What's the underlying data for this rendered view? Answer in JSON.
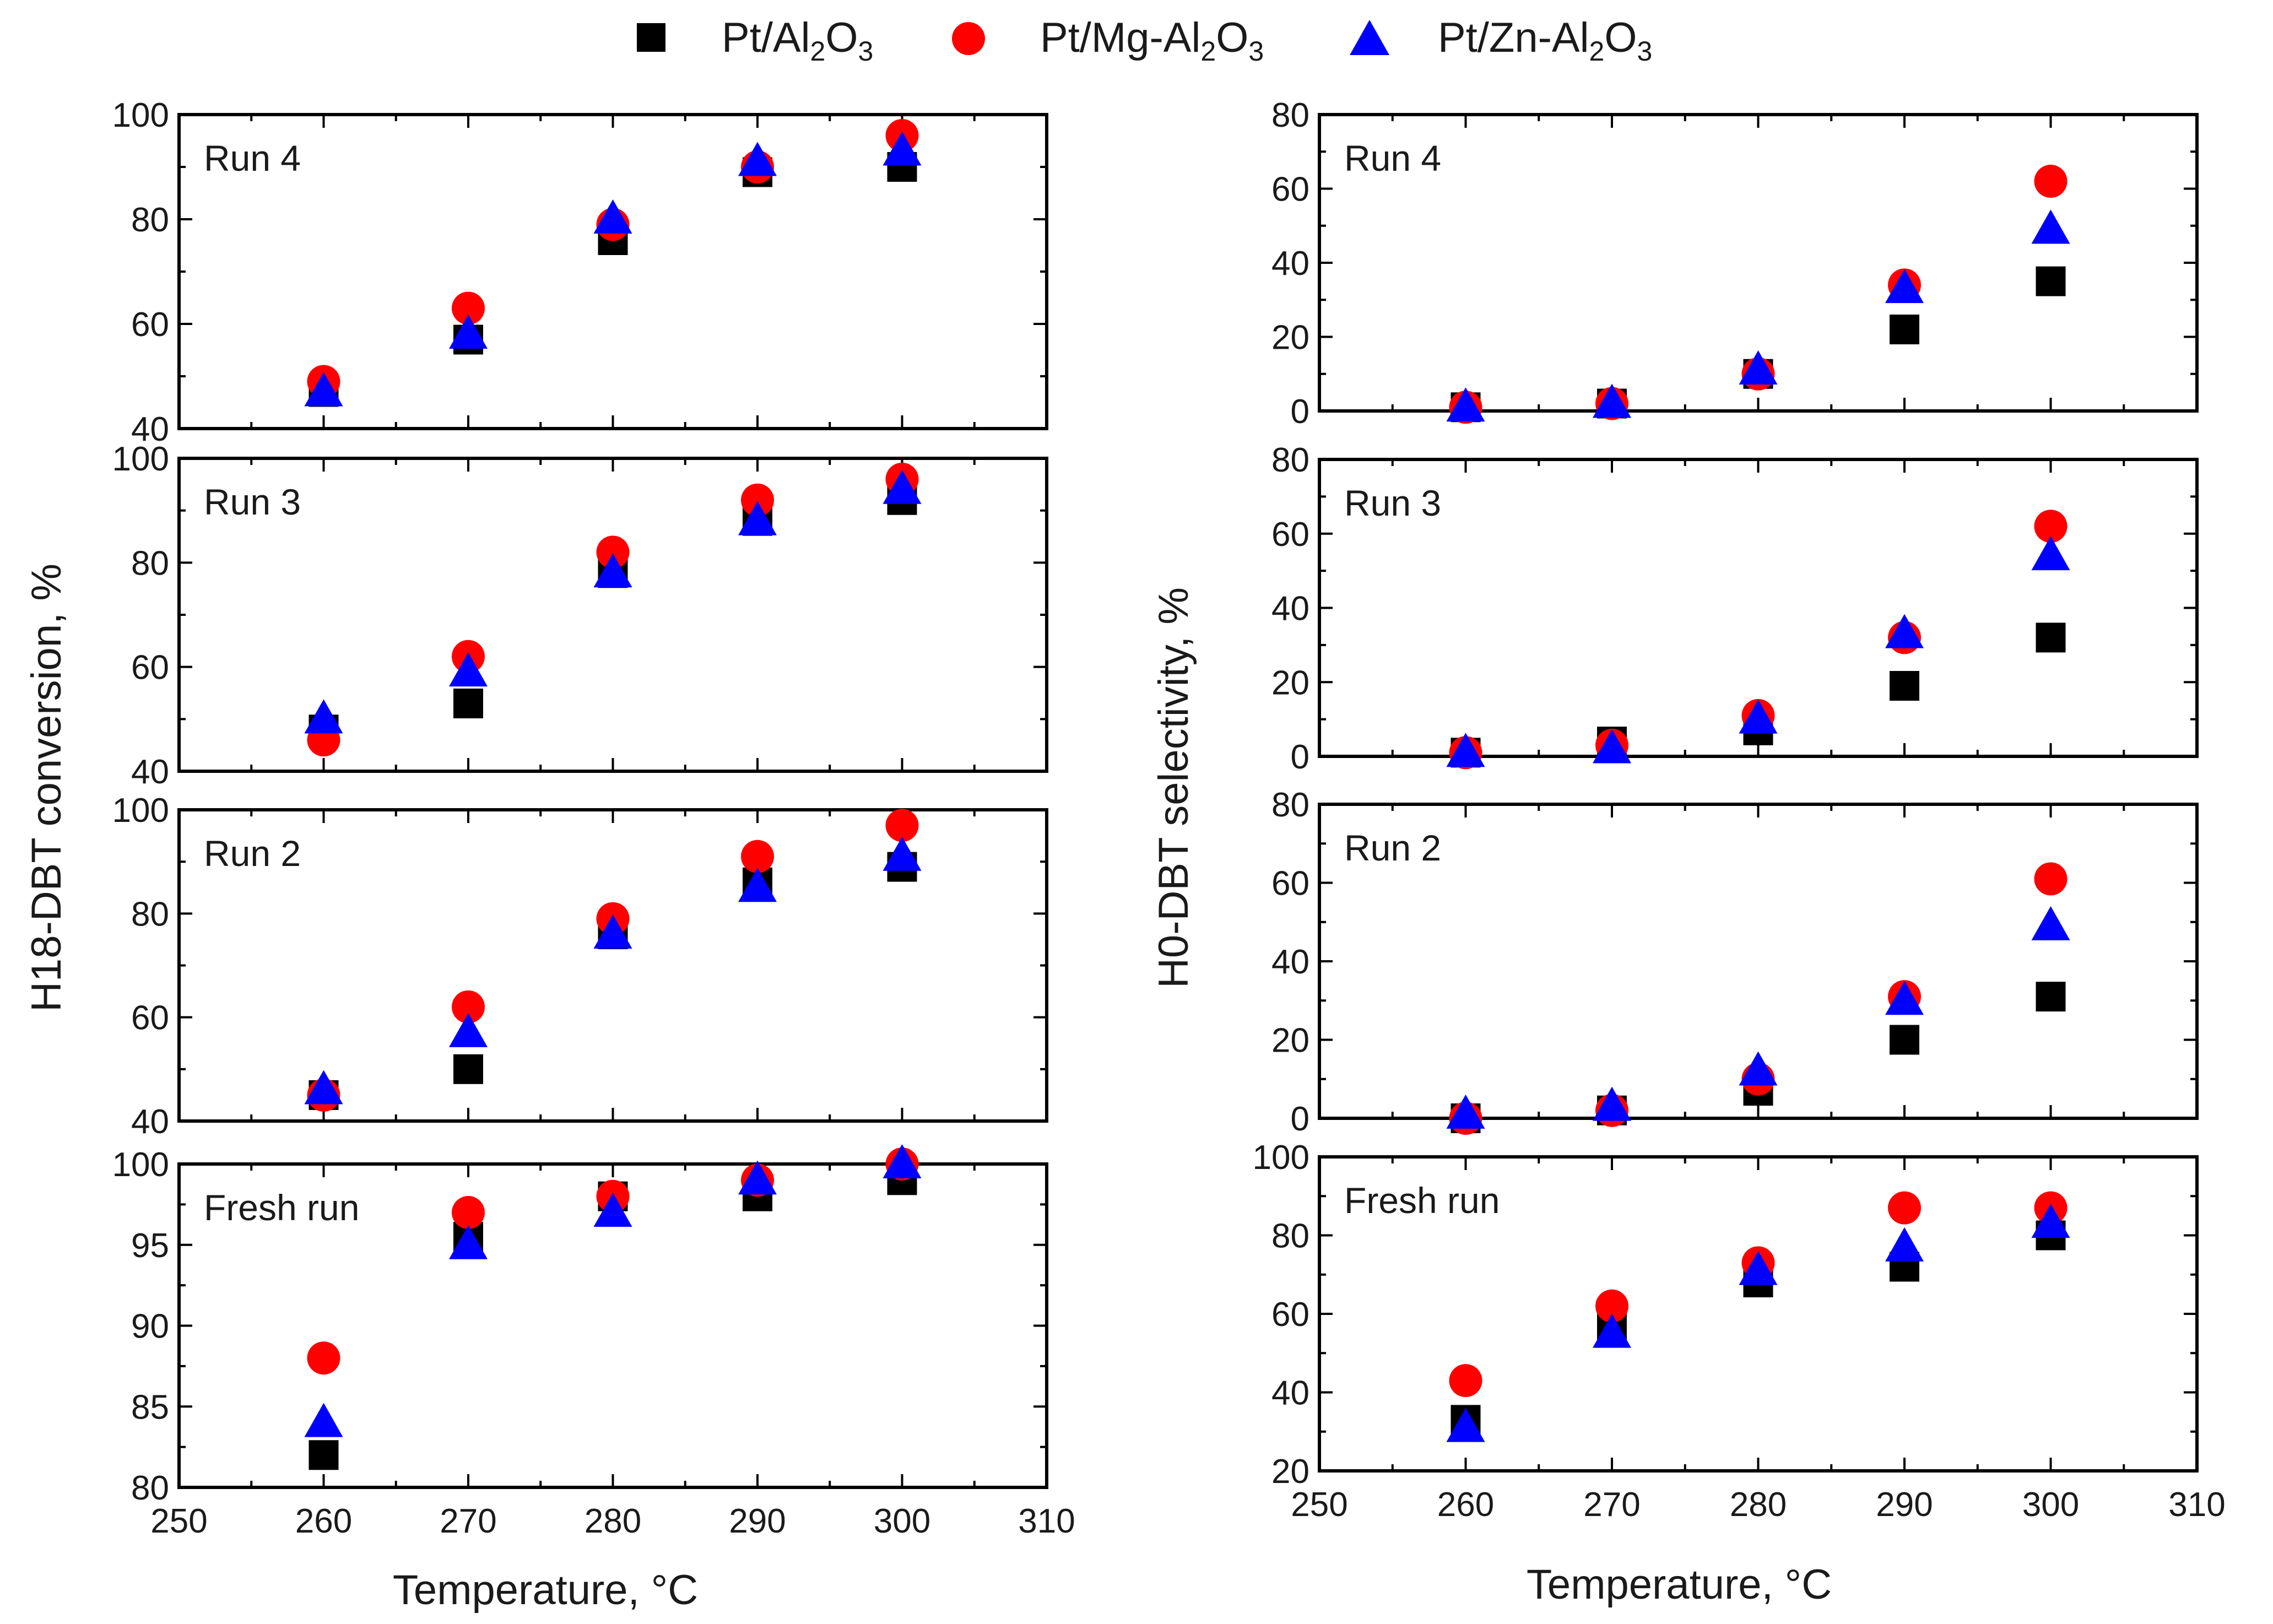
{
  "chart_data": {
    "type": "scatter",
    "legend": [
      {
        "name": "Pt/Al",
        "sub1": "2",
        "mid": "O",
        "sub2": "3",
        "marker": "square",
        "color": "#000000"
      },
      {
        "name": "Pt/Mg-Al",
        "sub1": "2",
        "mid": "O",
        "sub2": "3",
        "marker": "circle",
        "color": "#ff0000"
      },
      {
        "name": "Pt/Zn-Al",
        "sub1": "2",
        "mid": "O",
        "sub2": "3",
        "marker": "triangle",
        "color": "#0000ff"
      }
    ],
    "x_ticks": [
      250,
      260,
      270,
      280,
      290,
      300,
      310
    ],
    "xlim": [
      250,
      310
    ],
    "xlabel": "Temperature, °C",
    "left_ylabel": "H18-DBT conversion, %",
    "right_ylabel": "H0-DBT selectivity, %",
    "x": [
      260,
      270,
      280,
      290,
      300
    ],
    "panels": [
      {
        "column": "left",
        "row": 0,
        "label": "Run 4",
        "ylim": [
          40,
          100
        ],
        "yticks": [
          40,
          60,
          80,
          100
        ],
        "series": {
          "Pt/Al2O3": [
            47,
            57,
            76,
            89,
            90
          ],
          "Pt/Mg-Al2O3": [
            49,
            63,
            79,
            90,
            96
          ],
          "Pt/Zn-Al2O3": [
            47,
            58,
            80,
            91,
            93
          ]
        }
      },
      {
        "column": "left",
        "row": 1,
        "label": "Run 3",
        "ylim": [
          40,
          100
        ],
        "yticks": [
          40,
          60,
          80,
          100
        ],
        "series": {
          "Pt/Al2O3": [
            48,
            53,
            78,
            88,
            92
          ],
          "Pt/Mg-Al2O3": [
            46,
            62,
            82,
            92,
            96
          ],
          "Pt/Zn-Al2O3": [
            50,
            59,
            78,
            88,
            94
          ]
        }
      },
      {
        "column": "left",
        "row": 2,
        "label": "Run 2",
        "ylim": [
          40,
          100
        ],
        "yticks": [
          40,
          60,
          80,
          100
        ],
        "series": {
          "Pt/Al2O3": [
            45,
            50,
            76,
            86,
            89
          ],
          "Pt/Mg-Al2O3": [
            45,
            62,
            79,
            91,
            97
          ],
          "Pt/Zn-Al2O3": [
            46,
            57,
            76,
            85,
            91
          ]
        }
      },
      {
        "column": "left",
        "row": 3,
        "label": "Fresh run",
        "ylim": [
          80,
          100
        ],
        "yticks": [
          80,
          85,
          90,
          95,
          100
        ],
        "series": {
          "Pt/Al2O3": [
            82,
            95.5,
            98,
            98,
            99
          ],
          "Pt/Mg-Al2O3": [
            88,
            97,
            98,
            99,
            100
          ],
          "Pt/Zn-Al2O3": [
            84,
            95,
            97,
            99,
            100
          ]
        }
      },
      {
        "column": "right",
        "row": 0,
        "label": "Run 4",
        "ylim": [
          0,
          80
        ],
        "yticks": [
          0,
          20,
          40,
          60,
          80
        ],
        "series": {
          "Pt/Al2O3": [
            1,
            2,
            10,
            22,
            35
          ],
          "Pt/Mg-Al2O3": [
            1,
            2,
            10,
            34,
            62
          ],
          "Pt/Zn-Al2O3": [
            1,
            2,
            11,
            33,
            49
          ]
        }
      },
      {
        "column": "right",
        "row": 1,
        "label": "Run 3",
        "ylim": [
          0,
          80
        ],
        "yticks": [
          0,
          20,
          40,
          60,
          80
        ],
        "series": {
          "Pt/Al2O3": [
            1,
            4,
            7,
            19,
            32
          ],
          "Pt/Mg-Al2O3": [
            1,
            3,
            11,
            32,
            62
          ],
          "Pt/Zn-Al2O3": [
            1,
            2,
            10,
            33,
            54
          ]
        }
      },
      {
        "column": "right",
        "row": 2,
        "label": "Run 2",
        "ylim": [
          0,
          80
        ],
        "yticks": [
          0,
          20,
          40,
          60,
          80
        ],
        "series": {
          "Pt/Al2O3": [
            0,
            2,
            7,
            20,
            31
          ],
          "Pt/Mg-Al2O3": [
            0,
            2,
            10,
            31,
            61
          ],
          "Pt/Zn-Al2O3": [
            1,
            3,
            12,
            30,
            49
          ]
        }
      },
      {
        "column": "right",
        "row": 3,
        "label": "Fresh run",
        "ylim": [
          20,
          100
        ],
        "yticks": [
          20,
          40,
          60,
          80,
          100
        ],
        "series": {
          "Pt/Al2O3": [
            33,
            57,
            68,
            72,
            80
          ],
          "Pt/Mg-Al2O3": [
            43,
            62,
            73,
            87,
            87
          ],
          "Pt/Zn-Al2O3": [
            31,
            55,
            71,
            77,
            83
          ]
        }
      }
    ]
  }
}
